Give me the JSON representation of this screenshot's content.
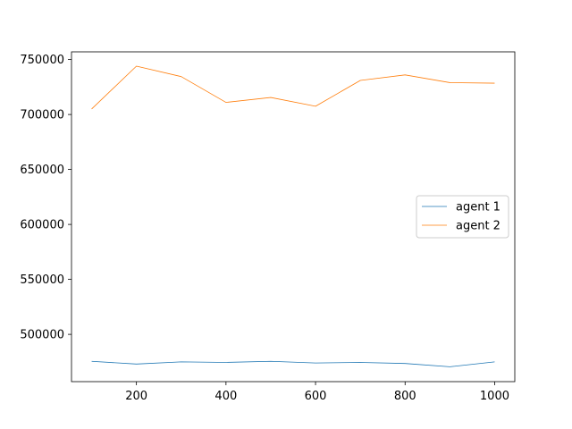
{
  "chart_data": {
    "type": "line",
    "title": "",
    "xlabel": "",
    "ylabel": "",
    "x": [
      100,
      200,
      300,
      400,
      500,
      600,
      700,
      800,
      900,
      1000
    ],
    "xlim": [
      55,
      1045
    ],
    "ylim": [
      457000,
      757000
    ],
    "xticks": [
      200,
      400,
      600,
      800,
      1000
    ],
    "yticks": [
      500000,
      550000,
      600000,
      650000,
      700000,
      750000
    ],
    "grid": false,
    "legend_position": "center-right",
    "series": [
      {
        "name": "agent 1",
        "color": "#1f77b4",
        "values": [
          475500,
          473000,
          475000,
          474500,
          475500,
          474000,
          474500,
          473500,
          470500,
          475000
        ]
      },
      {
        "name": "agent 2",
        "color": "#ff7f0e",
        "values": [
          705000,
          744000,
          734500,
          711000,
          715500,
          707500,
          731000,
          736000,
          729000,
          728500
        ]
      }
    ]
  }
}
